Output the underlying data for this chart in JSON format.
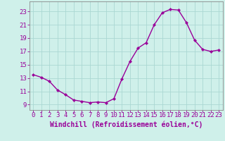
{
  "x": [
    0,
    1,
    2,
    3,
    4,
    5,
    6,
    7,
    8,
    9,
    10,
    11,
    12,
    13,
    14,
    15,
    16,
    17,
    18,
    19,
    20,
    21,
    22,
    23
  ],
  "y": [
    13.5,
    13.1,
    12.5,
    11.2,
    10.5,
    9.7,
    9.5,
    9.3,
    9.4,
    9.3,
    9.9,
    12.9,
    15.5,
    17.5,
    18.3,
    21.0,
    22.8,
    23.3,
    23.2,
    21.3,
    18.7,
    17.3,
    17.0,
    17.2
  ],
  "line_color": "#990099",
  "marker": "D",
  "marker_size": 2.2,
  "line_width": 1.0,
  "bg_color": "#cff0ea",
  "grid_color": "#aad8d3",
  "xlabel": "Windchill (Refroidissement éolien,°C)",
  "xlabel_fontsize": 7,
  "xtick_labels": [
    "0",
    "1",
    "2",
    "3",
    "4",
    "5",
    "6",
    "7",
    "8",
    "9",
    "10",
    "11",
    "12",
    "13",
    "14",
    "15",
    "16",
    "17",
    "18",
    "19",
    "20",
    "21",
    "22",
    "23"
  ],
  "ytick_values": [
    9,
    11,
    13,
    15,
    17,
    19,
    21,
    23
  ],
  "ylim": [
    8.2,
    24.5
  ],
  "xlim": [
    -0.5,
    23.5
  ],
  "tick_color": "#990099",
  "tick_fontsize": 6.5,
  "spine_color": "#888888"
}
